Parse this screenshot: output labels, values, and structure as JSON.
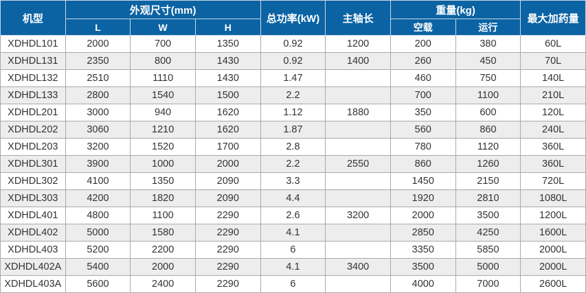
{
  "headers": {
    "model": "机型",
    "dimensions": "外观尺寸(mm)",
    "L": "L",
    "W": "W",
    "H": "H",
    "power": "总功率(kW)",
    "spindle": "主轴长",
    "weight": "重量(kg)",
    "empty": "空载",
    "running": "运行",
    "max_load": "最大加药量"
  },
  "colors": {
    "header_bg": "#0b63a3",
    "alt_row": "#ededed"
  },
  "rows": [
    [
      "XDHDL101",
      "2000",
      "700",
      "1350",
      "0.92",
      "1200",
      "200",
      "380",
      "60L"
    ],
    [
      "XDHDL131",
      "2350",
      "800",
      "1430",
      "0.92",
      "1400",
      "260",
      "450",
      "70L"
    ],
    [
      "XDHDL132",
      "2510",
      "1110",
      "1430",
      "1.47",
      "",
      "460",
      "750",
      "140L"
    ],
    [
      "XDHDL133",
      "2800",
      "1540",
      "1500",
      "2.2",
      "",
      "700",
      "1100",
      "210L"
    ],
    [
      "XDHDL201",
      "3000",
      "940",
      "1620",
      "1.12",
      "1880",
      "350",
      "600",
      "120L"
    ],
    [
      "XDHDL202",
      "3060",
      "1210",
      "1620",
      "1.87",
      "",
      "560",
      "860",
      "240L"
    ],
    [
      "XDHDL203",
      "3200",
      "1520",
      "1700",
      "2.8",
      "",
      "780",
      "1120",
      "360L"
    ],
    [
      "XDHDL301",
      "3900",
      "1000",
      "2000",
      "2.2",
      "2550",
      "860",
      "1260",
      "360L"
    ],
    [
      "XDHDL302",
      "4100",
      "1350",
      "2090",
      "3.3",
      "",
      "1450",
      "2150",
      "720L"
    ],
    [
      "XDHDL303",
      "4200",
      "1820",
      "2090",
      "4.4",
      "",
      "1920",
      "2810",
      "1080L"
    ],
    [
      "XDHDL401",
      "4800",
      "1100",
      "2290",
      "2.6",
      "3200",
      "2000",
      "3500",
      "1200L"
    ],
    [
      "XDHDL402",
      "5000",
      "1580",
      "2290",
      "4.1",
      "",
      "2850",
      "4250",
      "1600L"
    ],
    [
      "XDHDL403",
      "5200",
      "2200",
      "2290",
      "6",
      "",
      "3350",
      "5850",
      "2000L"
    ],
    [
      "XDHDL402A",
      "5400",
      "2000",
      "2290",
      "4.1",
      "3400",
      "3500",
      "5000",
      "2000L"
    ],
    [
      "XDHDL403A",
      "5600",
      "2400",
      "2290",
      "6",
      "",
      "4000",
      "7000",
      "2600L"
    ]
  ]
}
